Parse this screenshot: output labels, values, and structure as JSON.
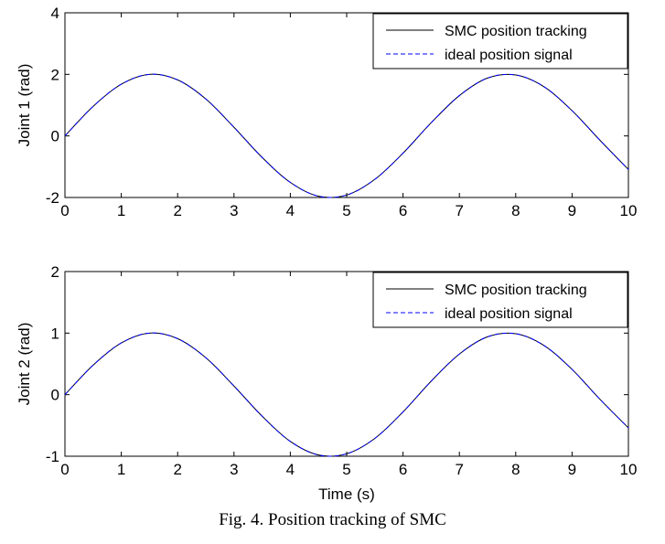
{
  "caption": "Fig. 4. Position tracking of SMC",
  "chart_data": [
    {
      "type": "line",
      "title": "",
      "xlabel": "",
      "ylabel": "Joint 1 (rad)",
      "xlim": [
        0,
        10
      ],
      "ylim": [
        -2,
        4
      ],
      "xticks": [
        0,
        1,
        2,
        3,
        4,
        5,
        6,
        7,
        8,
        9,
        10
      ],
      "yticks": [
        -2,
        0,
        2,
        4
      ],
      "grid": false,
      "legend_position": "top-right",
      "x": [
        0,
        0.5,
        1,
        1.5,
        2,
        2.5,
        3,
        3.5,
        4,
        4.5,
        5,
        5.5,
        6,
        6.5,
        7,
        7.5,
        8,
        8.5,
        9,
        9.5,
        10
      ],
      "series": [
        {
          "name": "SMC position tracking",
          "style": "solid",
          "color": "#000000",
          "values": [
            0,
            0.96,
            1.68,
            2.0,
            1.82,
            1.2,
            0.28,
            -0.7,
            -1.51,
            -1.96,
            -1.92,
            -1.41,
            -0.56,
            0.43,
            1.31,
            1.88,
            1.98,
            1.6,
            0.82,
            -0.15,
            -1.09
          ]
        },
        {
          "name": "ideal position signal",
          "style": "dashed",
          "color": "#0000ff",
          "values": [
            0,
            0.96,
            1.68,
            2.0,
            1.82,
            1.2,
            0.28,
            -0.7,
            -1.51,
            -1.96,
            -1.92,
            -1.41,
            -0.56,
            0.43,
            1.31,
            1.88,
            1.98,
            1.6,
            0.82,
            -0.15,
            -1.09
          ]
        }
      ]
    },
    {
      "type": "line",
      "title": "",
      "xlabel": "Time (s)",
      "ylabel": "Joint 2 (rad)",
      "xlim": [
        0,
        10
      ],
      "ylim": [
        -1,
        2
      ],
      "xticks": [
        0,
        1,
        2,
        3,
        4,
        5,
        6,
        7,
        8,
        9,
        10
      ],
      "yticks": [
        -1,
        0,
        1,
        2
      ],
      "grid": false,
      "legend_position": "top-right",
      "x": [
        0,
        0.5,
        1,
        1.5,
        2,
        2.5,
        3,
        3.5,
        4,
        4.5,
        5,
        5.5,
        6,
        6.5,
        7,
        7.5,
        8,
        8.5,
        9,
        9.5,
        10
      ],
      "series": [
        {
          "name": "SMC position tracking",
          "style": "solid",
          "color": "#000000",
          "values": [
            0,
            0.48,
            0.84,
            1.0,
            0.91,
            0.6,
            0.14,
            -0.35,
            -0.76,
            -0.98,
            -0.96,
            -0.71,
            -0.28,
            0.22,
            0.66,
            0.94,
            0.99,
            0.8,
            0.41,
            -0.08,
            -0.54
          ]
        },
        {
          "name": "ideal position signal",
          "style": "dashed",
          "color": "#0000ff",
          "values": [
            0,
            0.48,
            0.84,
            1.0,
            0.91,
            0.6,
            0.14,
            -0.35,
            -0.76,
            -0.98,
            -0.96,
            -0.71,
            -0.28,
            0.22,
            0.66,
            0.94,
            0.99,
            0.8,
            0.41,
            -0.08,
            -0.54
          ]
        }
      ]
    }
  ]
}
